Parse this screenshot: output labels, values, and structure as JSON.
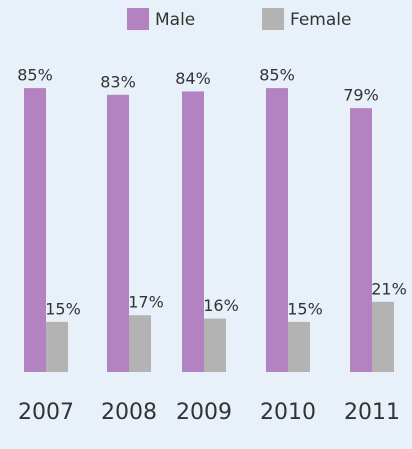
{
  "chart_data": {
    "type": "bar",
    "categories": [
      "2007",
      "2008",
      "2009",
      "2010",
      "2011"
    ],
    "series": [
      {
        "name": "Male",
        "color": "#b383c1",
        "values": [
          85,
          83,
          84,
          85,
          79
        ],
        "value_labels": [
          "85%",
          "83%",
          "84%",
          "85%",
          "79%"
        ]
      },
      {
        "name": "Female",
        "color": "#b3b3b3",
        "values": [
          15,
          17,
          16,
          15,
          21
        ],
        "value_labels": [
          "15%",
          "17%",
          "16%",
          "15%",
          "21%"
        ]
      }
    ],
    "legend": "top"
  }
}
